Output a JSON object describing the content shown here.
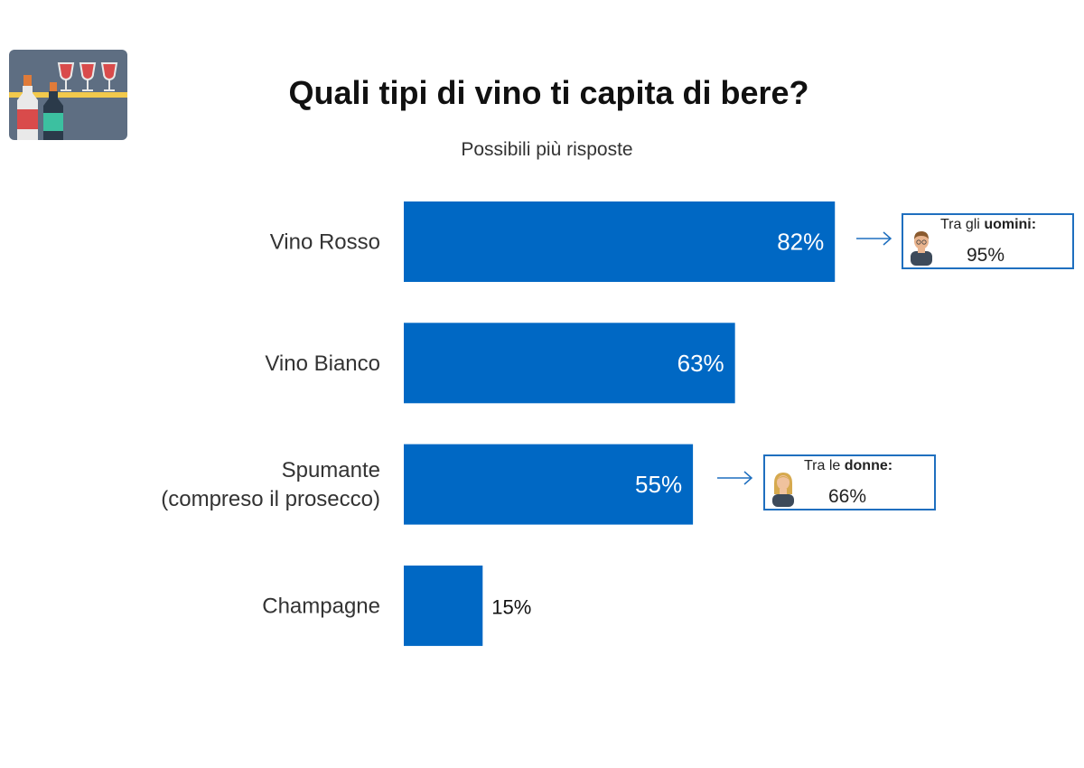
{
  "title": "Quali tipi di vino ti capita di bere?",
  "subtitle": "Possibili più risposte",
  "icon": "wine-bar-icon",
  "colors": {
    "bar": "#0068c4",
    "label_inside": "#ffffff",
    "label_outside": "#111111",
    "callout_border": "#1f6fbf"
  },
  "chart_data": {
    "type": "bar",
    "orientation": "horizontal",
    "categories": [
      "Vino Rosso",
      "Vino Bianco",
      "Spumante\n(compreso il prosecco)",
      "Champagne"
    ],
    "values": [
      82,
      63,
      55,
      15
    ],
    "value_labels": [
      "82%",
      "63%",
      "55%",
      "15%"
    ],
    "xlim": [
      0,
      100
    ],
    "grid": false,
    "unit": "%"
  },
  "callouts": {
    "men": {
      "prefix": "Tra gli ",
      "emphasis": "uomini:",
      "value": "95%",
      "icon": "man-avatar-icon"
    },
    "women": {
      "prefix": "Tra le ",
      "emphasis": "donne:",
      "value": "66%",
      "icon": "woman-avatar-icon"
    }
  }
}
